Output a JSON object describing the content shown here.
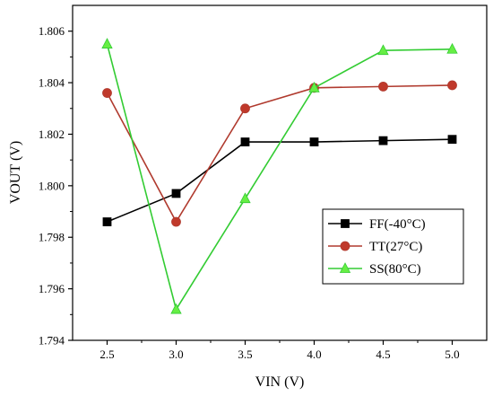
{
  "chart_data": {
    "type": "line",
    "title": "",
    "xlabel": "VIN (V)",
    "ylabel": "VOUT (V)",
    "x": [
      2.5,
      3.0,
      3.5,
      4.0,
      4.5,
      5.0
    ],
    "xlim": [
      2.25,
      5.25
    ],
    "ylim": [
      1.794,
      1.807
    ],
    "x_ticks": [
      2.5,
      3.0,
      3.5,
      4.0,
      4.5,
      5.0
    ],
    "x_tick_labels": [
      "2.5",
      "3.0",
      "3.5",
      "4.0",
      "4.5",
      "5.0"
    ],
    "y_ticks": [
      1.794,
      1.796,
      1.798,
      1.8,
      1.802,
      1.804,
      1.806
    ],
    "y_tick_labels": [
      "1.794",
      "1.796",
      "1.798",
      "1.800",
      "1.802",
      "1.804",
      "1.806"
    ],
    "grid": false,
    "legend_position": "center-right",
    "series": [
      {
        "name": "FF(-40°C)",
        "marker": "square",
        "color": "#000000",
        "fill": "#000000",
        "values": [
          1.7986,
          1.7997,
          1.8017,
          1.8017,
          1.80175,
          1.8018
        ]
      },
      {
        "name": "TT(27°C)",
        "marker": "circle",
        "color": "#b03a2e",
        "fill": "#c0392b",
        "values": [
          1.8036,
          1.7986,
          1.803,
          1.8038,
          1.80385,
          1.8039
        ]
      },
      {
        "name": "SS(80°C)",
        "marker": "triangle",
        "color": "#33cc33",
        "fill": "#66ee44",
        "values": [
          1.8055,
          1.7952,
          1.7995,
          1.8038,
          1.80525,
          1.8053
        ]
      }
    ]
  }
}
